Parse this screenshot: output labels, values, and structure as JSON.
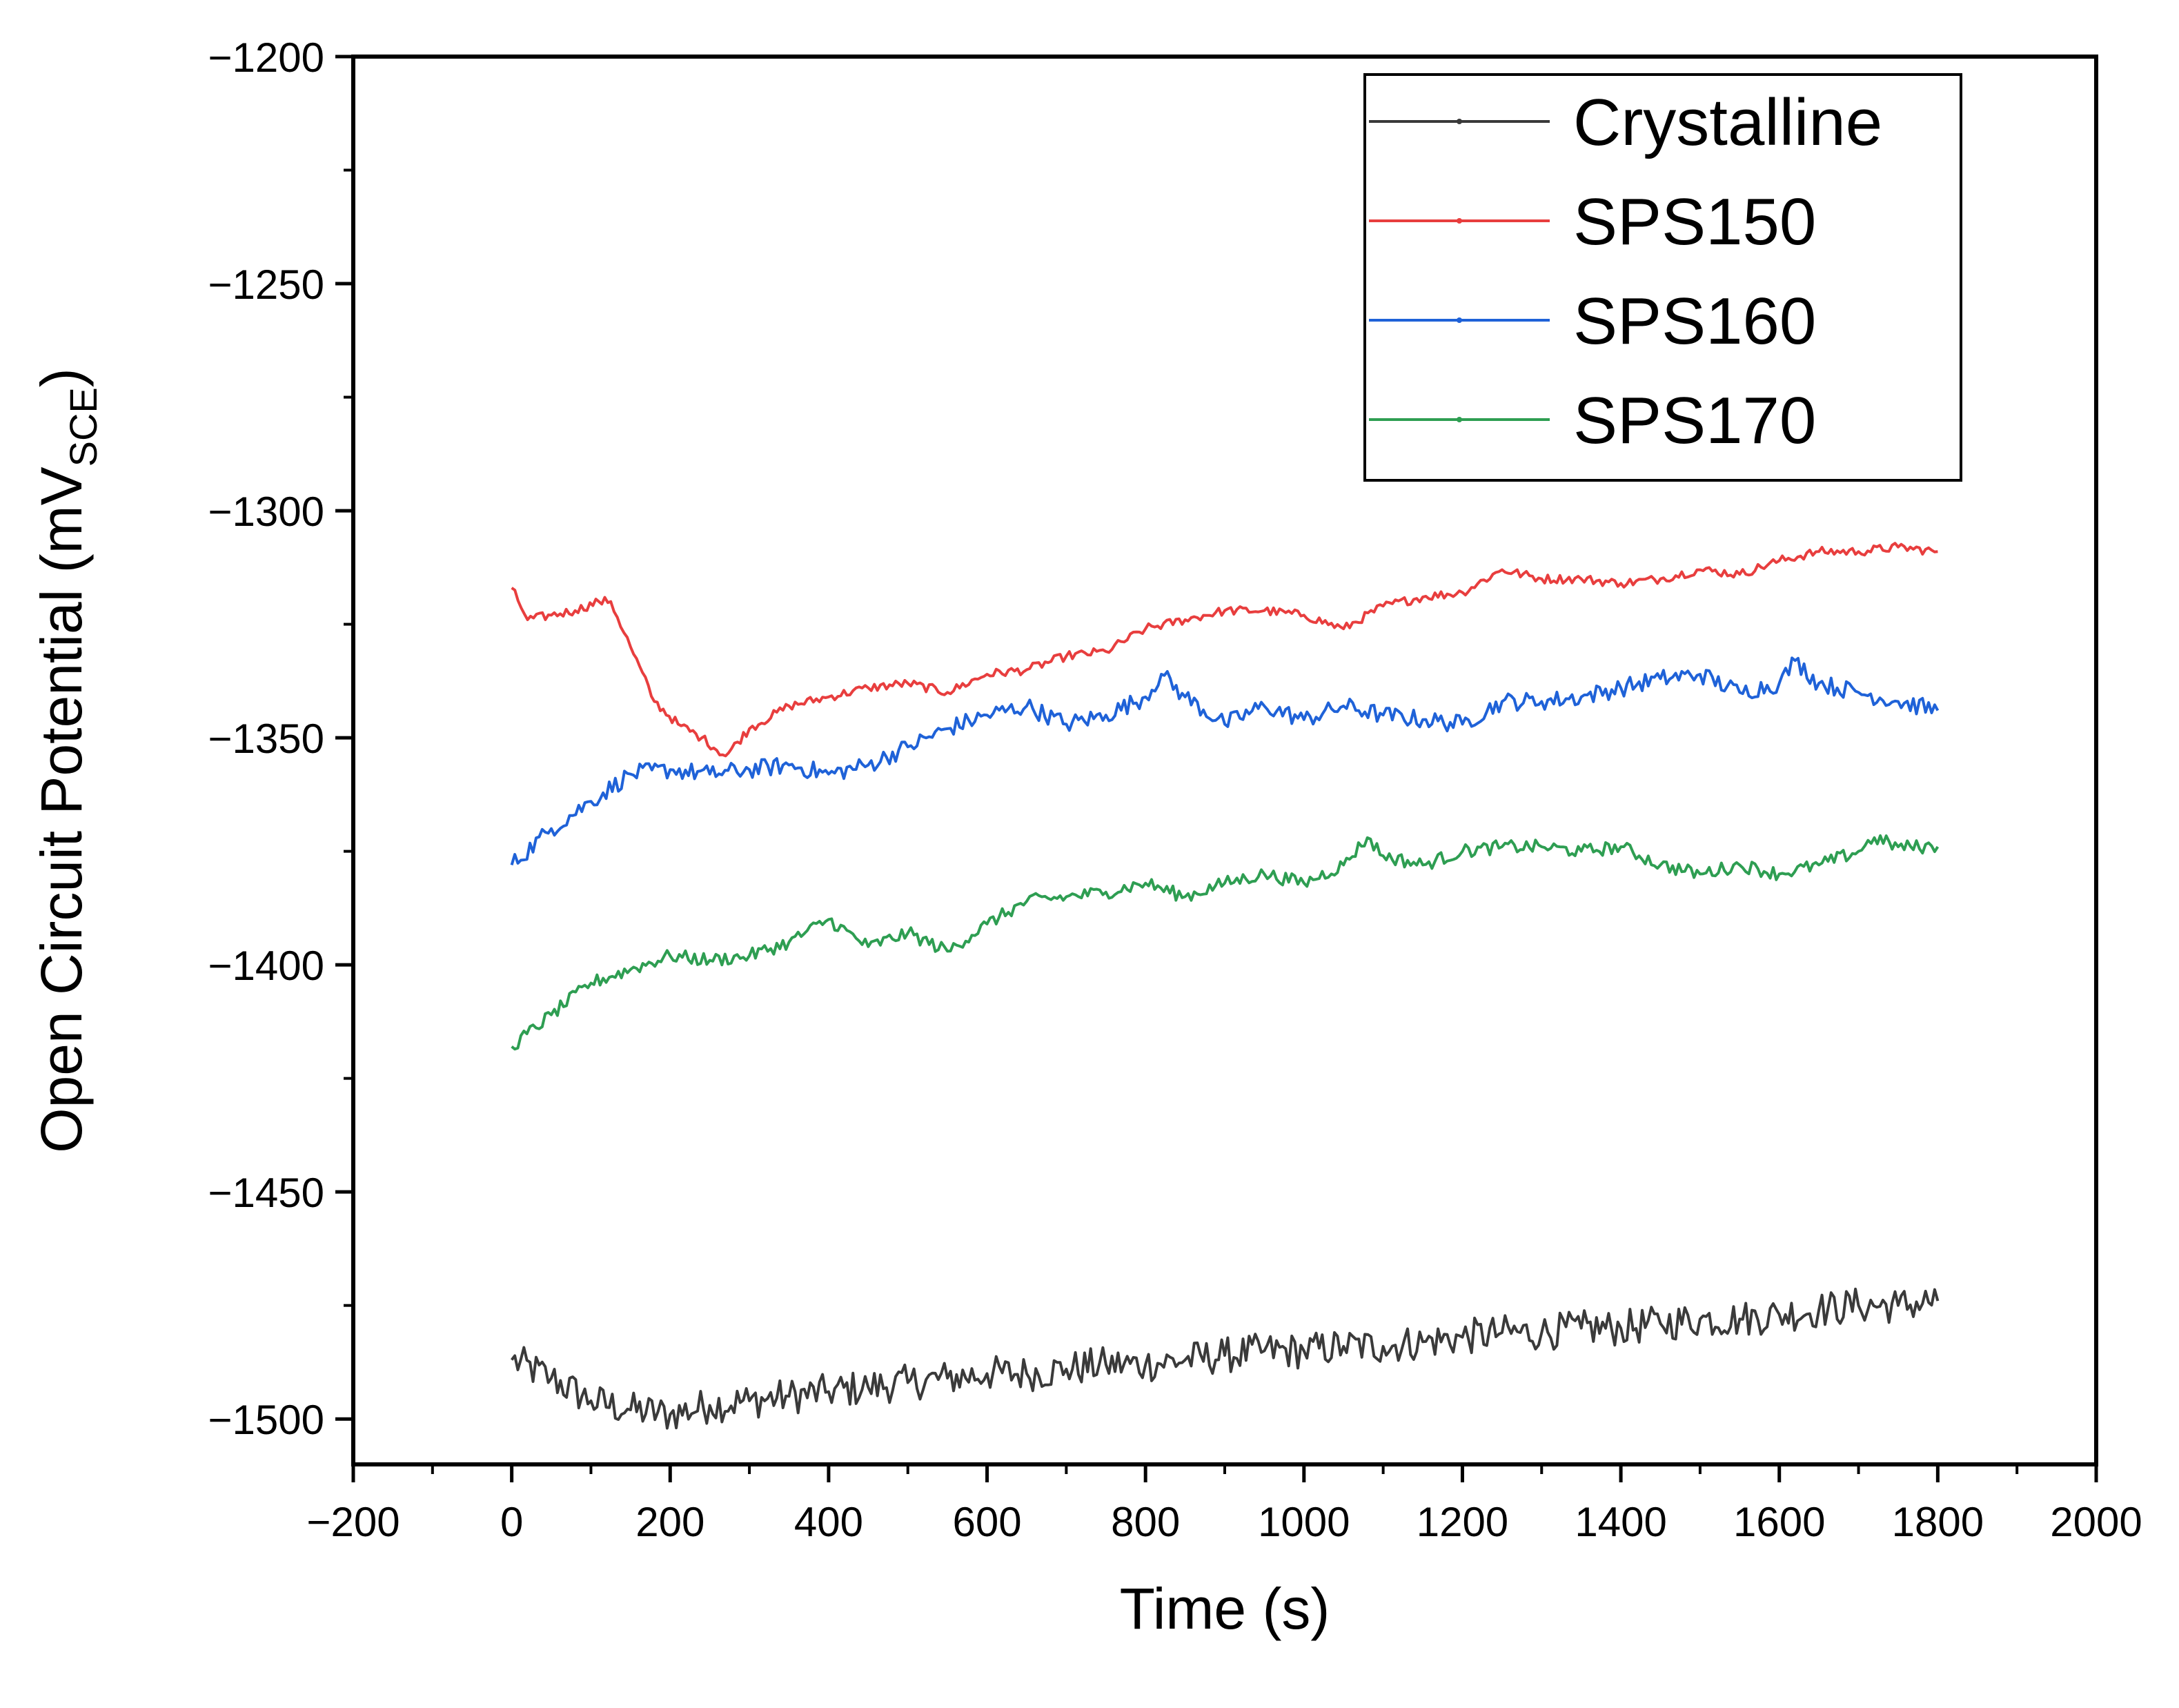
{
  "chart_data": {
    "type": "line",
    "title": "",
    "xlabel": "Time (s)",
    "ylabel_main": "Open Circuit Potential (mV",
    "ylabel_sub": "SCE",
    "ylabel_close": ")",
    "xlim": [
      -200,
      2000
    ],
    "ylim": [
      -1510,
      -1200
    ],
    "xticks": [
      -200,
      0,
      200,
      400,
      600,
      800,
      1000,
      1200,
      1400,
      1600,
      1800,
      2000
    ],
    "xtick_labels": [
      "−200",
      "0",
      "200",
      "400",
      "600",
      "800",
      "1000",
      "1200",
      "1400",
      "1600",
      "1800",
      "2000"
    ],
    "yticks": [
      -1200,
      -1250,
      -1300,
      -1350,
      -1400,
      -1450,
      -1500
    ],
    "ytick_labels": [
      "−1200",
      "−1250",
      "−1300",
      "−1350",
      "−1400",
      "−1450",
      "−1500"
    ],
    "grid": false,
    "legend_position": "top-right",
    "series": [
      {
        "name": "Crystalline",
        "color": "#3a3a3a",
        "noise": 4,
        "x": [
          0,
          50,
          100,
          150,
          200,
          250,
          300,
          350,
          400,
          450,
          500,
          550,
          600,
          650,
          700,
          750,
          800,
          850,
          900,
          950,
          1000,
          1050,
          1100,
          1150,
          1200,
          1250,
          1300,
          1350,
          1400,
          1450,
          1500,
          1550,
          1600,
          1650,
          1700,
          1750,
          1800
        ],
        "y": [
          -1487,
          -1491,
          -1496,
          -1498,
          -1499,
          -1497,
          -1496,
          -1495,
          -1494,
          -1493,
          -1492,
          -1491,
          -1490,
          -1490,
          -1489,
          -1488,
          -1488,
          -1487,
          -1486,
          -1485,
          -1485,
          -1484,
          -1484,
          -1483,
          -1482,
          -1481,
          -1481,
          -1480,
          -1480,
          -1479,
          -1478,
          -1478,
          -1477,
          -1476,
          -1475,
          -1475,
          -1474
        ]
      },
      {
        "name": "SPS150",
        "color": "#e83e3e",
        "noise": 1,
        "x": [
          0,
          20,
          50,
          80,
          110,
          125,
          150,
          180,
          210,
          240,
          270,
          300,
          350,
          400,
          450,
          500,
          550,
          600,
          650,
          700,
          750,
          800,
          850,
          900,
          950,
          1000,
          1050,
          1100,
          1150,
          1200,
          1250,
          1300,
          1350,
          1400,
          1450,
          1500,
          1550,
          1600,
          1650,
          1700,
          1750,
          1800
        ],
        "y": [
          -1317,
          -1324,
          -1323,
          -1322,
          -1320,
          -1320,
          -1330,
          -1342,
          -1347,
          -1350,
          -1354,
          -1348,
          -1343,
          -1341,
          -1339,
          -1338,
          -1340,
          -1336,
          -1335,
          -1332,
          -1331,
          -1326,
          -1324,
          -1322,
          -1322,
          -1323,
          -1326,
          -1321,
          -1319,
          -1318,
          -1313,
          -1315,
          -1315,
          -1316,
          -1315,
          -1313,
          -1314,
          -1311,
          -1309,
          -1309,
          -1308,
          -1309
        ]
      },
      {
        "name": "SPS160",
        "color": "#1f62d8",
        "noise": 2,
        "x": [
          0,
          50,
          100,
          150,
          200,
          250,
          300,
          350,
          400,
          450,
          500,
          550,
          600,
          650,
          700,
          750,
          800,
          820,
          850,
          900,
          950,
          1000,
          1050,
          1100,
          1150,
          1200,
          1250,
          1300,
          1350,
          1400,
          1450,
          1500,
          1550,
          1600,
          1620,
          1650,
          1700,
          1750,
          1800
        ],
        "y": [
          -1378,
          -1370,
          -1364,
          -1358,
          -1357,
          -1358,
          -1357,
          -1356,
          -1358,
          -1356,
          -1352,
          -1348,
          -1345,
          -1343,
          -1347,
          -1345,
          -1341,
          -1336,
          -1341,
          -1347,
          -1343,
          -1346,
          -1343,
          -1345,
          -1346,
          -1347,
          -1342,
          -1342,
          -1341,
          -1339,
          -1337,
          -1336,
          -1340,
          -1338,
          -1333,
          -1338,
          -1340,
          -1342,
          -1344
        ]
      },
      {
        "name": "SPS170",
        "color": "#2e9e52",
        "noise": 1.5,
        "x": [
          0,
          50,
          100,
          150,
          200,
          250,
          300,
          350,
          400,
          450,
          500,
          550,
          600,
          650,
          700,
          750,
          800,
          850,
          900,
          950,
          1000,
          1050,
          1080,
          1100,
          1150,
          1200,
          1250,
          1300,
          1350,
          1400,
          1450,
          1500,
          1550,
          1600,
          1650,
          1700,
          1720,
          1750,
          1800
        ],
        "y": [
          -1418,
          -1411,
          -1404,
          -1401,
          -1398,
          -1399,
          -1398,
          -1395,
          -1390,
          -1396,
          -1393,
          -1397,
          -1391,
          -1386,
          -1385,
          -1384,
          -1382,
          -1385,
          -1382,
          -1380,
          -1382,
          -1378,
          -1372,
          -1376,
          -1378,
          -1375,
          -1374,
          -1374,
          -1375,
          -1374,
          -1378,
          -1380,
          -1378,
          -1380,
          -1378,
          -1375,
          -1372,
          -1374,
          -1374
        ]
      }
    ]
  }
}
